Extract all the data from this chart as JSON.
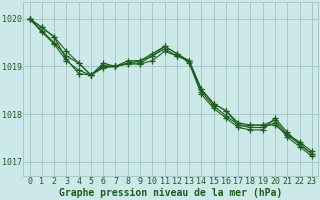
{
  "xlabel": "Graphe pression niveau de la mer (hPa)",
  "bg_color": "#cce8e8",
  "grid_color": "#aacccc",
  "line_color": "#1a5e1a",
  "marker_color": "#1a5e1a",
  "ylim": [
    1016.7,
    1020.35
  ],
  "yticks": [
    1017,
    1018,
    1019,
    1020
  ],
  "xlim": [
    -0.5,
    23.5
  ],
  "xticks": [
    0,
    1,
    2,
    3,
    4,
    5,
    6,
    7,
    8,
    9,
    10,
    11,
    12,
    13,
    14,
    15,
    16,
    17,
    18,
    19,
    20,
    21,
    22,
    23
  ],
  "series": [
    [
      1020.0,
      1019.82,
      1019.62,
      1019.15,
      1018.85,
      1018.82,
      1019.0,
      1019.0,
      1019.05,
      1019.05,
      1019.12,
      1019.32,
      1019.22,
      1019.12,
      1018.52,
      1018.22,
      1018.07,
      1017.77,
      1017.77,
      1017.77,
      1017.77,
      1017.57,
      1017.42,
      1017.22
    ],
    [
      1020.0,
      1019.75,
      1019.5,
      1019.22,
      1019.07,
      1018.82,
      1019.02,
      1019.0,
      1019.12,
      1019.12,
      1019.27,
      1019.42,
      1019.27,
      1019.07,
      1018.42,
      1018.12,
      1017.92,
      1017.72,
      1017.67,
      1017.67,
      1017.92,
      1017.62,
      1017.37,
      1017.17
    ],
    [
      1020.0,
      1019.72,
      1019.47,
      1019.12,
      1018.92,
      1018.82,
      1018.97,
      1019.0,
      1019.07,
      1019.12,
      1019.22,
      1019.42,
      1019.27,
      1019.12,
      1018.47,
      1018.17,
      1017.97,
      1017.77,
      1017.72,
      1017.72,
      1017.82,
      1017.52,
      1017.32,
      1017.12
    ],
    [
      1020.0,
      1019.82,
      1019.62,
      1019.32,
      1019.07,
      1018.82,
      1019.07,
      1019.0,
      1019.07,
      1019.07,
      1019.22,
      1019.37,
      1019.22,
      1019.12,
      1018.52,
      1018.22,
      1018.07,
      1017.82,
      1017.77,
      1017.77,
      1017.87,
      1017.57,
      1017.37,
      1017.17
    ]
  ],
  "xlabel_fontsize": 7,
  "tick_fontsize": 6,
  "line_width": 0.8,
  "marker_size": 4
}
